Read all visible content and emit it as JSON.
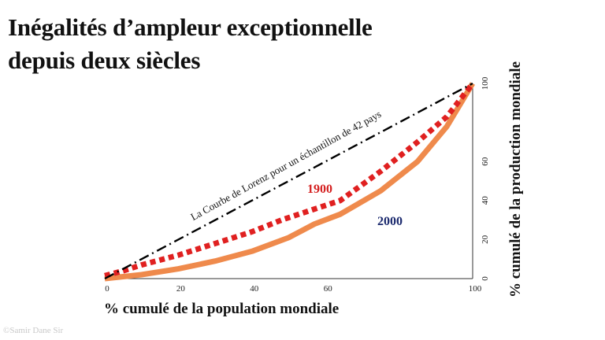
{
  "title_line1": "Inégalités d’ampleur exceptionnelle",
  "title_line2": "depuis deux siècles",
  "watermark": "©Samir Dane Sir",
  "chart_data": {
    "type": "line",
    "xlabel": "% cumulé de la population mondiale",
    "ylabel": "% cumulé de la production mondiale",
    "xlim": [
      0,
      100
    ],
    "ylim": [
      0,
      100
    ],
    "x_ticks": [
      0,
      20,
      40,
      60,
      80,
      100
    ],
    "x_tick_labels": [
      "0",
      "20",
      "40",
      "60",
      "",
      "100"
    ],
    "y_ticks": [
      0,
      20,
      40,
      60,
      100
    ],
    "y_tick_labels": [
      "0",
      "20",
      "40",
      "60",
      "100"
    ],
    "y_axis_position": "right",
    "grid": false,
    "series": [
      {
        "name": "La Courbe de Lorenz pour un échantillon de 42 pays",
        "style": "dash-dot",
        "color": "#000000",
        "x": [
          0,
          100
        ],
        "y": [
          0,
          100
        ]
      },
      {
        "name": "1900",
        "style": "dotted",
        "color": "#e02020",
        "x": [
          0,
          5,
          10,
          20,
          30,
          40,
          48,
          56,
          64,
          75,
          85,
          93,
          100
        ],
        "y": [
          1.5,
          4,
          7,
          12,
          18,
          24,
          30,
          35,
          40,
          55,
          70,
          83,
          100
        ]
      },
      {
        "name": "2000",
        "style": "solid",
        "color": "#ef8a4c",
        "x": [
          0,
          10,
          20,
          30,
          40,
          50,
          57,
          64,
          75,
          85,
          93,
          100
        ],
        "y": [
          0,
          2,
          5,
          9,
          14,
          21,
          28,
          33,
          45,
          60,
          78,
          100
        ]
      }
    ],
    "annotations": [
      {
        "text": "La Courbe de Lorenz pour un échantillon de 42 pays",
        "series": 0
      },
      {
        "text": "1900",
        "color": "#d42020",
        "series": 1
      },
      {
        "text": "2000",
        "color": "#1b2a6e",
        "series": 2
      }
    ]
  }
}
